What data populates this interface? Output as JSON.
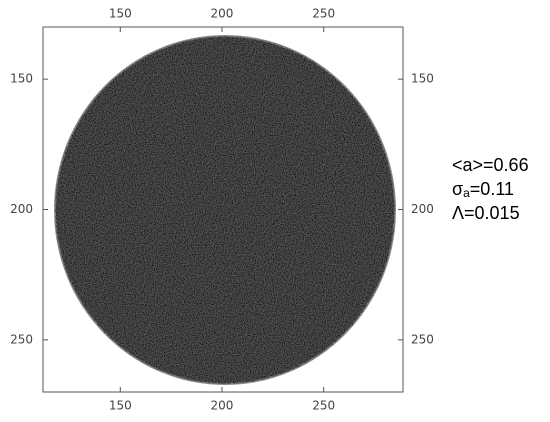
{
  "chart_data": {
    "type": "image",
    "xlim": [
      112,
      289
    ],
    "ylim": [
      130,
      270
    ],
    "xticks": [
      150,
      200,
      250
    ],
    "yticks": [
      150,
      200,
      250
    ],
    "annotations": {
      "mean": "<a>=0.66",
      "sigma_symbol": "σ",
      "sigma_sub": "a",
      "sigma_value": "=0.11",
      "lambda": "Λ=0.015"
    }
  }
}
